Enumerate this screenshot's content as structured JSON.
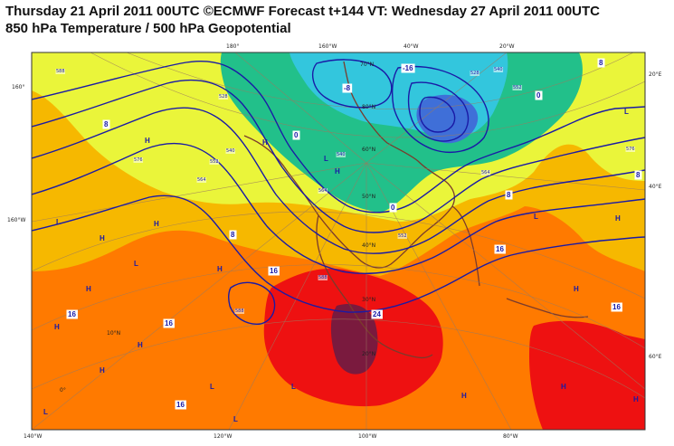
{
  "header": {
    "line1": "Thursday 21 April 2011 00UTC ©ECMWF Forecast t+144 VT: Wednesday 27 April 2011 00UTC",
    "line2": "850 hPa Temperature / 500 hPa Geopotential"
  },
  "map": {
    "projection": "polar stereographic",
    "fields": [
      "850 hPa Temperature (filled)",
      "500 hPa Geopotential (contours)"
    ],
    "colors": {
      "below_minus16": "#3f6fd8",
      "minus16_to_minus8": "#33c6dd",
      "minus8_to_0": "#22c08a",
      "zero_to_8": "#eaf53a",
      "eight_to_16": "#f6b800",
      "sixteen_to_24": "#ff7a00",
      "above_24": "#ee1111",
      "very_hot": "#7a1a3e",
      "contour": "#1a1aa6",
      "coastline": "#7a3b2c",
      "grid": "#9a7a60"
    },
    "longitude_labels": {
      "top": [
        "180°",
        "160°W",
        "40°W",
        "20°W"
      ],
      "left": [
        "160°",
        "160°W"
      ],
      "right": [
        "20°E",
        "40°E",
        "60°E"
      ],
      "bottom": [
        "140°W",
        "120°W",
        "100°W",
        "80°W"
      ]
    },
    "latitude_labels": [
      "80°N",
      "70°N",
      "60°N",
      "50°N",
      "40°N",
      "30°N",
      "20°N",
      "10°N",
      "0°"
    ],
    "temperature_labels": [
      "8",
      "8",
      "8",
      "0",
      "0",
      "0",
      "-8",
      "-16",
      "8",
      "8",
      "16",
      "16",
      "16",
      "16",
      "16",
      "16",
      "24"
    ],
    "geopotential_labels": [
      "588",
      "576",
      "564",
      "552",
      "540",
      "528",
      "528",
      "540",
      "552",
      "564",
      "576",
      "588",
      "564",
      "552",
      "540",
      "588"
    ],
    "pressure_markers": [
      "H",
      "L"
    ]
  }
}
